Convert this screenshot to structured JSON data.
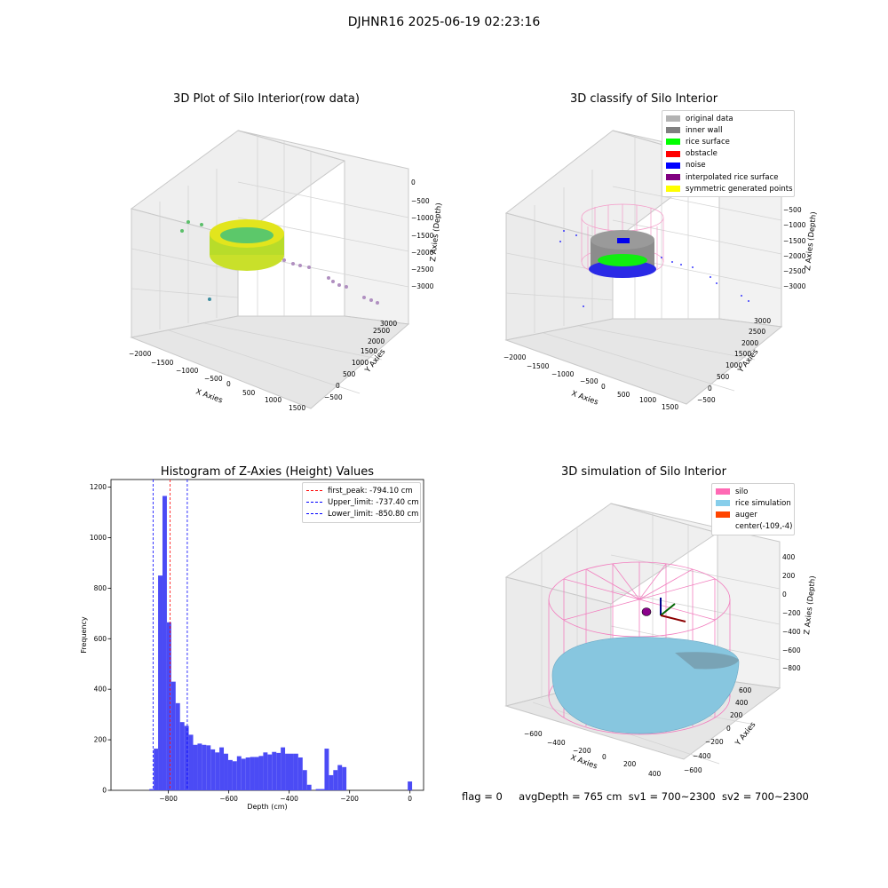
{
  "suptitle": "DJHNR16 2025-06-19 02:23:16",
  "panel1": {
    "title": "3D Plot of Silo Interior(row data)",
    "xlabel": "X Axies",
    "ylabel": "Y Axies",
    "zlabel": "Z Axies (Depth)",
    "xticks": [
      "−2000",
      "−1500",
      "−1000",
      "−500",
      "0",
      "500",
      "1000",
      "1500"
    ],
    "yticks": [
      "−500",
      "0",
      "500",
      "1000",
      "1500",
      "2000",
      "2500",
      "3000"
    ],
    "zticks": [
      "0",
      "−500",
      "−1000",
      "−1500",
      "−2000",
      "−2500",
      "−3000"
    ]
  },
  "panel2": {
    "title": "3D classify of Silo Interior",
    "xlabel": "X Axies",
    "ylabel": "Y Axies",
    "zlabel": "Z Axies (Depth)",
    "xticks": [
      "−2000",
      "−1500",
      "−1000",
      "−500",
      "0",
      "500",
      "1000",
      "1500"
    ],
    "yticks": [
      "−500",
      "0",
      "500",
      "1000",
      "1500",
      "2000",
      "2500",
      "3000"
    ],
    "zticks": [
      "0",
      "−500",
      "−1000",
      "−1500",
      "−2000",
      "−2500",
      "−3000"
    ],
    "legend": [
      {
        "label": "original data",
        "color": "#b3b3b3"
      },
      {
        "label": "inner wall",
        "color": "#808080"
      },
      {
        "label": "rice surface",
        "color": "#00ff00"
      },
      {
        "label": "obstacle",
        "color": "#ff0000"
      },
      {
        "label": "noise",
        "color": "#0000ff"
      },
      {
        "label": "interpolated rice surface",
        "color": "#800080"
      },
      {
        "label": "symmetric generated points",
        "color": "#ffff00"
      }
    ]
  },
  "panel4": {
    "title": "3D simulation of Silo Interior",
    "xlabel": "X Axies",
    "ylabel": "Y Axies",
    "zlabel": "Z Axies (Depth)",
    "xticks": [
      "−600",
      "−400",
      "−200",
      "0",
      "200",
      "400"
    ],
    "yticks": [
      "−600",
      "−400",
      "−200",
      "0",
      "200",
      "400",
      "600"
    ],
    "zticks": [
      "400",
      "200",
      "0",
      "−200",
      "−400",
      "−600",
      "−800"
    ],
    "legend": [
      {
        "label": "silo",
        "color": "#ff69b4"
      },
      {
        "label": "rice simulation",
        "color": "#87ceeb"
      },
      {
        "label": "auger",
        "color": "#ff4500"
      },
      {
        "label": "center(-109,-4)",
        "color": ""
      }
    ]
  },
  "footer": {
    "flag": "flag = 0",
    "avg": "avgDepth = 765 cm",
    "sv1": "sv1 = 700~2300",
    "sv2": "sv2 = 700~2300"
  },
  "chart_data": [
    {
      "type": "bar",
      "title": "Histogram of Z-Axies (Height) Values",
      "xlabel": "Depth (cm)",
      "ylabel": "Frequency",
      "xlim": [
        -990,
        45
      ],
      "ylim": [
        0,
        1230
      ],
      "xticks": [
        "−800",
        "−600",
        "−400",
        "−200",
        "0"
      ],
      "yticks": [
        "0",
        "200",
        "400",
        "600",
        "800",
        "1000",
        "1200"
      ],
      "bar_color": "#4b4bf5",
      "bin_width": 14.5,
      "bin_starts": [
        -863,
        -848.5,
        -834,
        -819.5,
        -805,
        -790.5,
        -776,
        -761.5,
        -747,
        -732.5,
        -718,
        -703.5,
        -689,
        -674.5,
        -660,
        -645.5,
        -631,
        -616.5,
        -602,
        -587.5,
        -573,
        -558.5,
        -544,
        -529.5,
        -515,
        -500.5,
        -486,
        -471.5,
        -457,
        -442.5,
        -428,
        -413.5,
        -399,
        -384.5,
        -370,
        -355.5,
        -341,
        -326.5,
        -312,
        -297.5,
        -283,
        -268.5,
        -254,
        -239.5,
        -225,
        -210.5,
        -196,
        -181.5,
        -167,
        -152.5,
        -138,
        -123.5,
        -109,
        -94.5,
        -80,
        -65.5,
        -51,
        -36.5,
        -22,
        -7.5
      ],
      "values": [
        5,
        165,
        850,
        1165,
        665,
        430,
        345,
        270,
        255,
        220,
        180,
        185,
        180,
        178,
        162,
        150,
        170,
        145,
        120,
        115,
        135,
        125,
        130,
        132,
        132,
        136,
        150,
        142,
        152,
        148,
        170,
        145,
        145,
        145,
        130,
        80,
        22,
        0,
        5,
        5,
        165,
        60,
        80,
        100,
        92,
        0,
        0,
        0,
        0,
        0,
        0,
        0,
        0,
        0,
        0,
        0,
        0,
        0,
        0,
        35
      ],
      "lines": [
        {
          "label": "first_peak: -794.10 cm",
          "x": -794.1,
          "color": "#ff0000"
        },
        {
          "label": "Upper_limit: -737.40 cm",
          "x": -737.4,
          "color": "#0000ff"
        },
        {
          "label": "Lower_limit: -850.80 cm",
          "x": -850.8,
          "color": "#0000ff"
        }
      ]
    }
  ]
}
